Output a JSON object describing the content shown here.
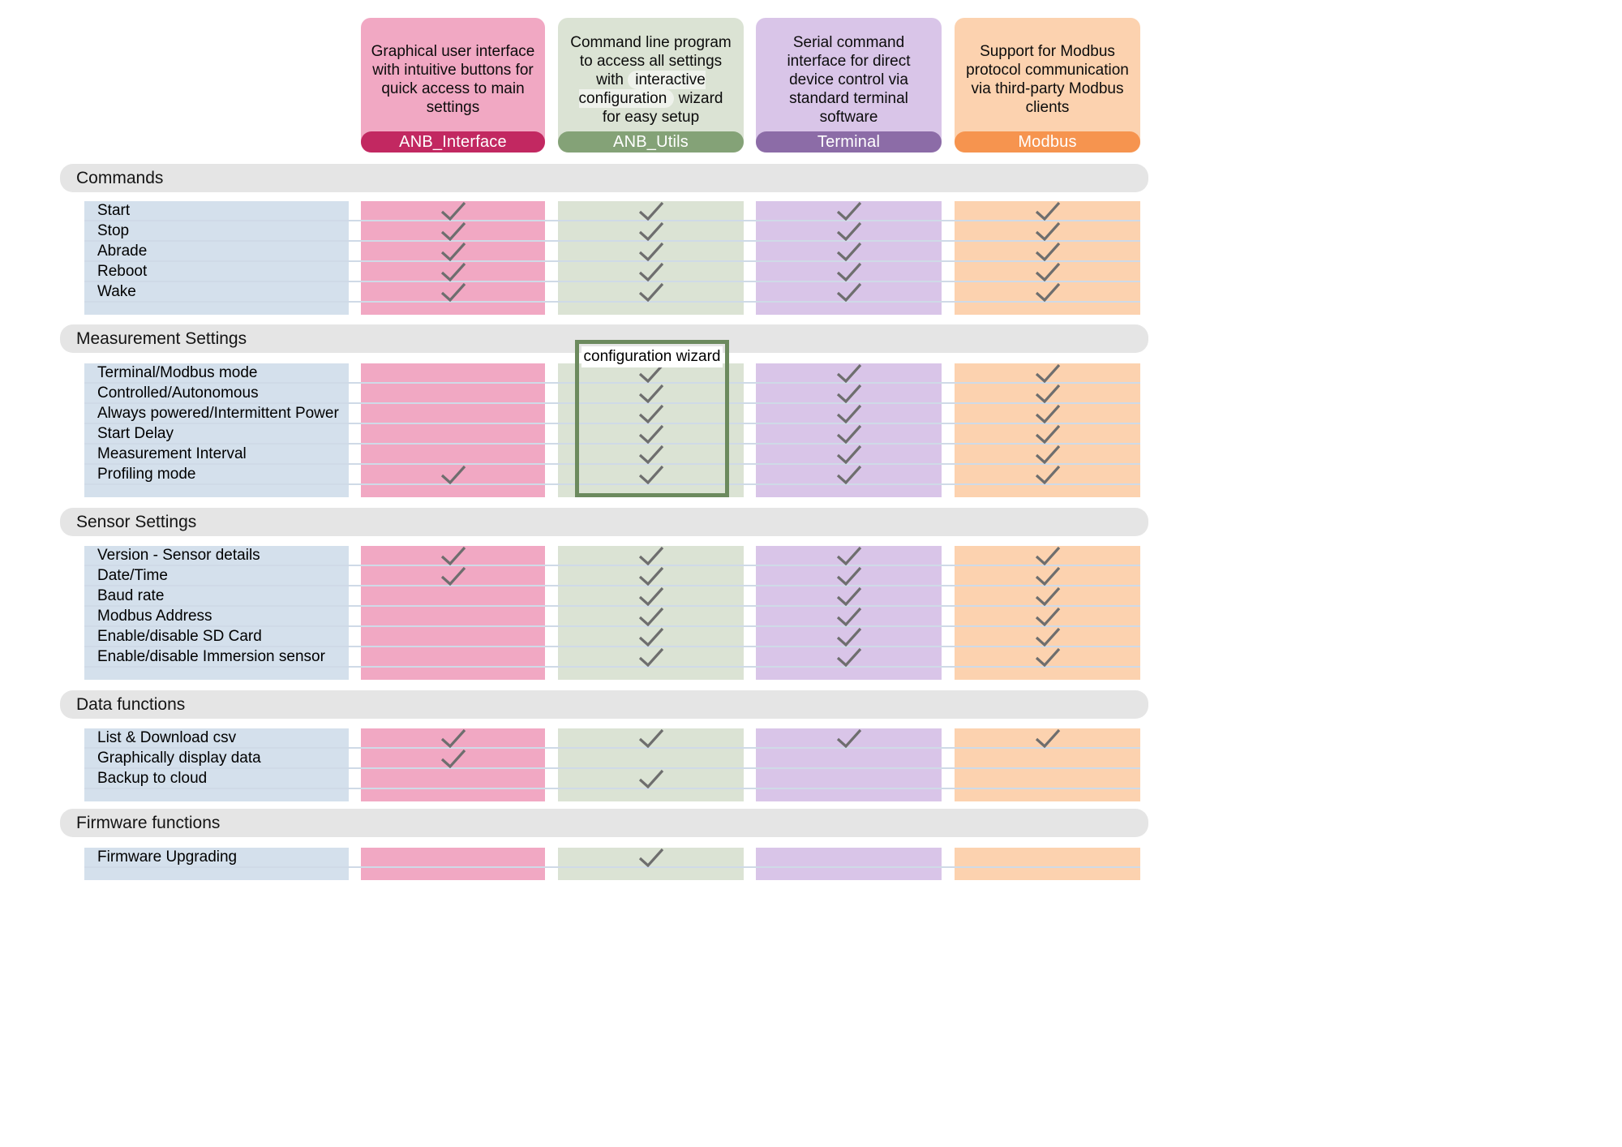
{
  "columns": [
    {
      "label": "ANB_Interface",
      "description": "Graphical user interface with intuitive buttons for quick access to main settings",
      "colors": {
        "card": "#f1a8c3",
        "label_bar": "#c22861",
        "cell": "#f1a8c3"
      }
    },
    {
      "label": "ANB_Utils",
      "description": "Command line program to access all settings with interactive configuration wizard for easy setup",
      "description_highlight": "interactive configuration",
      "colors": {
        "card": "#dbe3d4",
        "label_bar": "#84a277",
        "cell": "#dbe3d4"
      }
    },
    {
      "label": "Terminal",
      "description": "Serial command interface for direct device control via standard terminal software",
      "colors": {
        "card": "#d9c5e8",
        "label_bar": "#8c6ca7",
        "cell": "#d9c5e8"
      }
    },
    {
      "label": "Modbus",
      "description": "Support for Modbus protocol communication via third-party Modbus clients",
      "colors": {
        "card": "#fcd2af",
        "label_bar": "#f6944f",
        "cell": "#fcd2af"
      }
    }
  ],
  "sections": [
    {
      "title": "Commands",
      "rows": [
        {
          "label": "Start",
          "checks": [
            true,
            true,
            true,
            true
          ]
        },
        {
          "label": "Stop",
          "checks": [
            true,
            true,
            true,
            true
          ]
        },
        {
          "label": "Abrade",
          "checks": [
            true,
            true,
            true,
            true
          ]
        },
        {
          "label": "Reboot",
          "checks": [
            true,
            true,
            true,
            true
          ]
        },
        {
          "label": "Wake",
          "checks": [
            true,
            true,
            true,
            true
          ]
        }
      ]
    },
    {
      "title": "Measurement Settings",
      "rows": [
        {
          "label": "Terminal/Modbus mode",
          "checks": [
            false,
            true,
            true,
            true
          ]
        },
        {
          "label": "Controlled/Autonomous",
          "checks": [
            false,
            true,
            true,
            true
          ]
        },
        {
          "label": "Always powered/Intermittent Power",
          "checks": [
            false,
            true,
            true,
            true
          ]
        },
        {
          "label": "Start Delay",
          "checks": [
            false,
            true,
            true,
            true
          ]
        },
        {
          "label": "Measurement Interval",
          "checks": [
            false,
            true,
            true,
            true
          ]
        },
        {
          "label": "Profiling mode",
          "checks": [
            true,
            true,
            true,
            true
          ]
        }
      ]
    },
    {
      "title": "Sensor Settings",
      "rows": [
        {
          "label": "Version - Sensor details",
          "checks": [
            true,
            true,
            true,
            true
          ]
        },
        {
          "label": "Date/Time",
          "checks": [
            true,
            true,
            true,
            true
          ]
        },
        {
          "label": "Baud rate",
          "checks": [
            false,
            true,
            true,
            true
          ]
        },
        {
          "label": "Modbus Address",
          "checks": [
            false,
            true,
            true,
            true
          ]
        },
        {
          "label": "Enable/disable SD Card",
          "checks": [
            false,
            true,
            true,
            true
          ]
        },
        {
          "label": "Enable/disable Immersion sensor",
          "checks": [
            false,
            true,
            true,
            true
          ]
        }
      ]
    },
    {
      "title": "Data functions",
      "rows": [
        {
          "label": "List & Download csv",
          "checks": [
            true,
            true,
            true,
            true
          ]
        },
        {
          "label": "Graphically display data",
          "checks": [
            true,
            false,
            false,
            false
          ]
        },
        {
          "label": "Backup to cloud",
          "checks": [
            false,
            true,
            false,
            false
          ]
        }
      ]
    },
    {
      "title": "Firmware functions",
      "rows": [
        {
          "label": "Firmware Upgrading",
          "checks": [
            false,
            true,
            false,
            false
          ]
        }
      ]
    }
  ],
  "annotation": {
    "label": "configuration wizard"
  },
  "style_tokens": {
    "row_label_strip": "#d4e0ec",
    "section_bar": "#e5e5e5",
    "separator": "#cfdae7",
    "checkmark_color": "#6e6e6e",
    "annotation_border": "#6c8a5e"
  }
}
